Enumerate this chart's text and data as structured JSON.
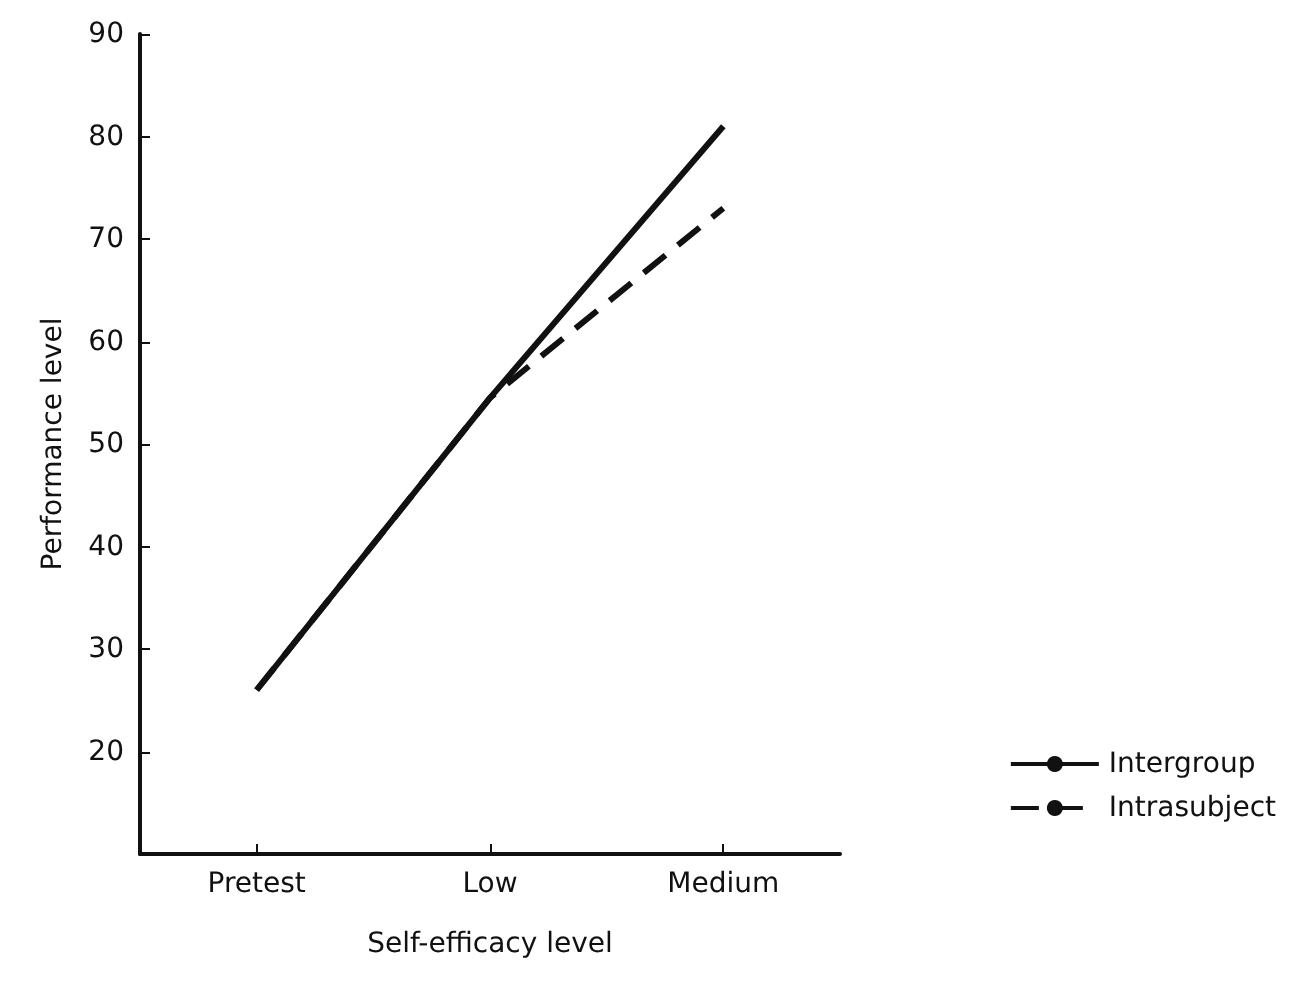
{
  "chart_data": {
    "type": "line",
    "xlabel": "Self-efficacy level",
    "ylabel": "Performance level",
    "categories": [
      "Pretest",
      "Low",
      "Medium"
    ],
    "series": [
      {
        "name": "Intergroup",
        "color": "#111111",
        "values": [
          26,
          54.5,
          81
        ],
        "line_style": "solid"
      },
      {
        "name": "Intrasubject",
        "color": "#111111",
        "values": [
          26,
          54.5,
          73
        ],
        "line_style": "dashed"
      }
    ],
    "ylim": [
      10,
      90
    ],
    "yticks": [
      20,
      30,
      40,
      50,
      60,
      70,
      80,
      90
    ],
    "grid": false,
    "legend": "right",
    "marker": "none"
  }
}
